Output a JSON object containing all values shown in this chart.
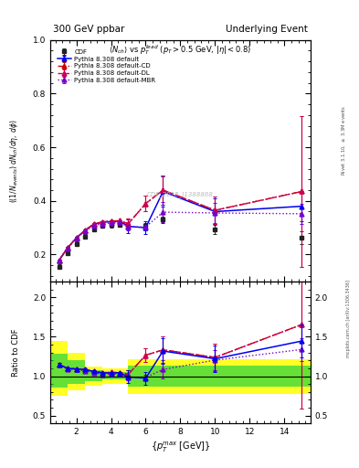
{
  "cdf_x": [
    1.0,
    1.5,
    2.0,
    2.5,
    3.0,
    3.5,
    4.0,
    4.5,
    5.0,
    6.0,
    7.0,
    10.0,
    15.0
  ],
  "cdf_y": [
    0.155,
    0.205,
    0.24,
    0.268,
    0.295,
    0.308,
    0.31,
    0.312,
    0.308,
    0.308,
    0.33,
    0.295,
    0.263
  ],
  "cdf_yerr": [
    0.008,
    0.008,
    0.008,
    0.008,
    0.008,
    0.008,
    0.008,
    0.008,
    0.008,
    0.01,
    0.012,
    0.018,
    0.025
  ],
  "py_x": [
    1.0,
    1.5,
    2.0,
    2.5,
    3.0,
    3.5,
    4.0,
    4.5,
    5.0,
    6.0,
    7.0,
    10.0,
    15.0
  ],
  "py_y": [
    0.178,
    0.225,
    0.262,
    0.29,
    0.313,
    0.32,
    0.323,
    0.325,
    0.305,
    0.3,
    0.435,
    0.36,
    0.38
  ],
  "py_ye": [
    0.003,
    0.003,
    0.003,
    0.003,
    0.003,
    0.003,
    0.003,
    0.003,
    0.025,
    0.025,
    0.055,
    0.05,
    0.055
  ],
  "cd_x": [
    1.0,
    1.5,
    2.0,
    2.5,
    3.0,
    3.5,
    4.0,
    4.5,
    5.0,
    6.0,
    7.0,
    10.0,
    15.0
  ],
  "cd_y": [
    0.178,
    0.225,
    0.262,
    0.29,
    0.313,
    0.322,
    0.325,
    0.326,
    0.315,
    0.39,
    0.44,
    0.365,
    0.435
  ],
  "cd_ye": [
    0.003,
    0.003,
    0.003,
    0.003,
    0.003,
    0.003,
    0.003,
    0.003,
    0.018,
    0.028,
    0.055,
    0.05,
    0.28
  ],
  "dl_x": [
    1.0,
    1.5,
    2.0,
    2.5,
    3.0,
    3.5,
    4.0,
    4.5,
    5.0,
    6.0,
    7.0,
    10.0,
    15.0
  ],
  "dl_y": [
    0.178,
    0.225,
    0.262,
    0.29,
    0.313,
    0.322,
    0.325,
    0.326,
    0.315,
    0.39,
    0.44,
    0.365,
    0.435
  ],
  "dl_ye": [
    0.003,
    0.003,
    0.003,
    0.003,
    0.003,
    0.003,
    0.003,
    0.003,
    0.018,
    0.028,
    0.055,
    0.05,
    0.28
  ],
  "mbr_x": [
    1.0,
    1.5,
    2.0,
    2.5,
    3.0,
    3.5,
    4.0,
    4.5,
    5.0,
    6.0,
    7.0,
    10.0,
    15.0
  ],
  "mbr_y": [
    0.178,
    0.223,
    0.26,
    0.286,
    0.308,
    0.315,
    0.318,
    0.32,
    0.303,
    0.303,
    0.358,
    0.355,
    0.352
  ],
  "mbr_ye": [
    0.003,
    0.003,
    0.003,
    0.003,
    0.003,
    0.003,
    0.003,
    0.003,
    0.012,
    0.012,
    0.038,
    0.038,
    0.038
  ],
  "yb_edges": [
    0.5,
    1.5,
    2.5,
    3.5,
    5.0,
    7.5,
    15.5
  ],
  "yb_lo": [
    0.75,
    0.82,
    0.88,
    0.9,
    0.78,
    0.78,
    0.78
  ],
  "yb_hi": [
    1.45,
    1.3,
    1.12,
    1.1,
    1.22,
    1.22,
    1.22
  ],
  "gb_edges": [
    0.5,
    1.5,
    2.5,
    3.5,
    5.0,
    7.5,
    15.5
  ],
  "gb_lo": [
    0.85,
    0.9,
    0.94,
    0.96,
    0.87,
    0.87,
    0.87
  ],
  "gb_hi": [
    1.28,
    1.2,
    1.07,
    1.05,
    1.13,
    1.13,
    1.13
  ],
  "xlim": [
    0.5,
    15.5
  ],
  "ylim_main": [
    0.1,
    1.0
  ],
  "ylim_ratio": [
    0.4,
    2.2
  ],
  "yticks_main": [
    0.2,
    0.4,
    0.6,
    0.8,
    1.0
  ],
  "yticks_ratio": [
    0.5,
    1.0,
    1.5,
    2.0
  ],
  "color_cdf": "#222222",
  "color_py": "#0000ee",
  "color_cd": "#cc0000",
  "color_dl": "#cc0055",
  "color_mbr": "#7700cc",
  "title_left": "300 GeV ppbar",
  "title_right": "Underlying Event",
  "inner_title": "$\\langle N_{ch}\\rangle$ vs $p_T^{lead}$ $(p_T > 0.5$ GeV, $|\\eta| < 0.8)$",
  "ylabel_main": "$((1/N_{events})\\;dN_{ch}/d\\eta,\\;d\\phi)$",
  "ylabel_ratio": "Ratio to CDF",
  "xlabel": "$\\{p_T^{max}\\;[\\mathrm{GeV}]\\}$",
  "watermark": "CDF_2015_I1388868",
  "right_text1": "Rivet 3.1.10, $\\geq$ 3.3M events",
  "right_text2": "mcplots.cern.ch [arXiv:1306.3436]",
  "legend_labels": [
    "CDF",
    "Pythia 8.308 default",
    "Pythia 8.308 default-CD",
    "Pythia 8.308 default-DL",
    "Pythia 8.308 default-MBR"
  ]
}
